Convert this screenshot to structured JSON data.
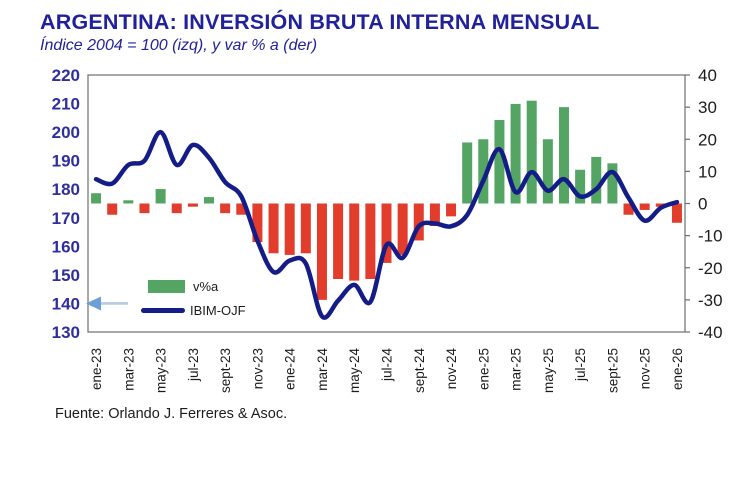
{
  "source": "Fuente: Orlando J. Ferreres & Asoc.",
  "colors": {
    "title_navy": "#21219b",
    "left_axis_labels": "#2e2e9e",
    "right_axis_labels": "#1c1c1c",
    "x_axis_labels": "#1c1c1c",
    "plot_border": "#6e6e6e",
    "bar_green": "#54a463",
    "bar_red": "#e23c2d",
    "line_navy": "#141c87",
    "arrow_shaft_blue": "#b5cbe2",
    "arrow_head_blue": "#6d9ed6"
  },
  "chart_data": {
    "type": "bar",
    "title": "ARGENTINA: INVERSIÓN BRUTA INTERNA MENSUAL",
    "subtitle": "Índice 2004 = 100 (izq), y var % a (der)",
    "grid": false,
    "legend_position": "inside-bottom-left",
    "categories": [
      "ene-23",
      "feb-23",
      "mar-23",
      "abr-23",
      "may-23",
      "jun-23",
      "jul-23",
      "ago-23",
      "sept-23",
      "oct-23",
      "nov-23",
      "dic-23",
      "ene-24",
      "feb-24",
      "mar-24",
      "abr-24",
      "may-24",
      "jun-24",
      "jul-24",
      "ago-24",
      "sept-24",
      "oct-24",
      "nov-24",
      "dic-24",
      "ene-25",
      "feb-25",
      "mar-25",
      "abr-25",
      "may-25",
      "jun-25",
      "jul-25",
      "ago-25",
      "sept-25",
      "oct-25",
      "nov-25",
      "dic-25",
      "ene-26"
    ],
    "x_tick_labels": [
      "ene-23",
      "mar-23",
      "may-23",
      "jul-23",
      "sept-23",
      "nov-23",
      "ene-24",
      "mar-24",
      "may-24",
      "jul-24",
      "sept-24",
      "nov-24",
      "ene-25",
      "mar-25",
      "may-25",
      "jul-25",
      "sept-25",
      "nov-25",
      "ene-26"
    ],
    "x_tick_every": 2,
    "left_axis": {
      "side": "left",
      "range": [
        130,
        220
      ],
      "ticks": [
        220,
        210,
        200,
        190,
        180,
        170,
        160,
        150,
        140,
        130
      ]
    },
    "right_axis": {
      "side": "right",
      "range": [
        -40,
        40
      ],
      "ticks": [
        40,
        30,
        20,
        10,
        0,
        -10,
        -20,
        -30,
        -40
      ]
    },
    "series": [
      {
        "name": "v%a",
        "type": "bar",
        "axis": "right",
        "color_positive": "#54a463",
        "color_negative": "#e23c2d",
        "values": [
          3.2,
          -3.5,
          1,
          -3,
          4.5,
          -3,
          -1,
          2,
          -3,
          -3.5,
          -12,
          -15.5,
          -16,
          -15.5,
          -30,
          -23.5,
          -24,
          -23.5,
          -18.5,
          -16,
          -11.5,
          -7,
          -4,
          19,
          20,
          26,
          31,
          32,
          20,
          30,
          10.5,
          14.5,
          12.5,
          -3.5,
          -2,
          -1,
          -6
        ]
      },
      {
        "name": "IBIM-OJF",
        "type": "line",
        "axis": "left",
        "color": "#141c87",
        "values": [
          183.5,
          182,
          188.5,
          190,
          200,
          188.5,
          195.5,
          191,
          182.5,
          177.5,
          162,
          151,
          155,
          154,
          135.5,
          141,
          146.5,
          140.5,
          160.5,
          156,
          167,
          168,
          167,
          171,
          183,
          194,
          179,
          186,
          179.5,
          183.5,
          177.5,
          180,
          186,
          177,
          169,
          173.5,
          175.5
        ]
      }
    ],
    "annotation": {
      "type": "arrow-left",
      "at_left_axis_value": 140
    }
  }
}
